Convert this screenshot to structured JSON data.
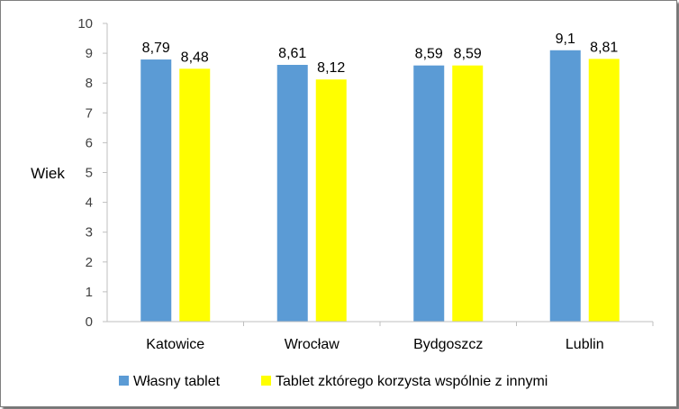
{
  "chart_data": {
    "type": "bar",
    "ylabel": "Wiek",
    "xlabel": "",
    "title": "",
    "ylim": [
      0,
      10
    ],
    "ytick_step": 1,
    "grid": false,
    "legend_position": "bottom",
    "categories": [
      "Katowice",
      "Wrocław",
      "Bydgoszcz",
      "Lublin"
    ],
    "series": [
      {
        "name": "Własny tablet",
        "color": "#5b9bd5",
        "values": [
          8.79,
          8.61,
          8.59,
          9.1
        ],
        "labels": [
          "8,79",
          "8,61",
          "8,59",
          "9,1"
        ]
      },
      {
        "name": "Tablet zktórego korzysta wspólnie z innymi",
        "color": "#ffff00",
        "values": [
          8.48,
          8.12,
          8.59,
          8.81
        ],
        "labels": [
          "8,48",
          "8,12",
          "8,59",
          "8,81"
        ]
      }
    ]
  }
}
